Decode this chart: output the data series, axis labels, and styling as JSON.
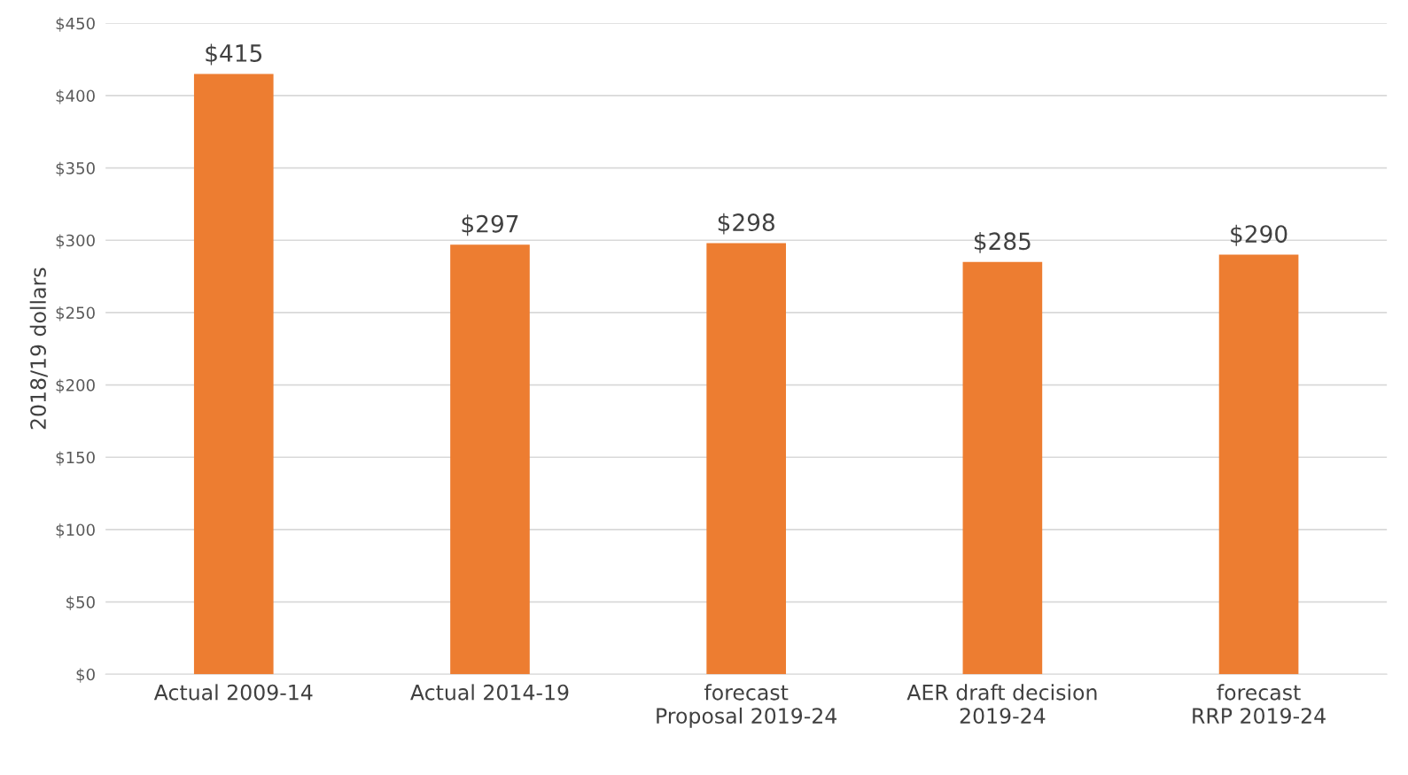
{
  "chart_data": {
    "type": "bar",
    "ylabel": "2018/19 dollars",
    "categories": [
      "Actual 2009-14",
      "Actual 2014-19",
      "forecast\nProposal 2019-24",
      "AER draft decision\n2019-24",
      "forecast\nRRP 2019-24"
    ],
    "values": [
      415,
      297,
      298,
      285,
      290
    ],
    "color": "#ed7d31",
    "value_labels": [
      "$415",
      "$297",
      "$298",
      "$285",
      "$290"
    ],
    "ylim": [
      0,
      450
    ],
    "yticks": [
      {
        "value": 0,
        "label": "$0"
      },
      {
        "value": 50,
        "label": "$50"
      },
      {
        "value": 100,
        "label": "$100"
      },
      {
        "value": 150,
        "label": "$150"
      },
      {
        "value": 200,
        "label": "$200"
      },
      {
        "value": 250,
        "label": "$250"
      },
      {
        "value": 300,
        "label": "$300"
      },
      {
        "value": 350,
        "label": "$350"
      },
      {
        "value": 400,
        "label": "$400"
      },
      {
        "value": 450,
        "label": "$450"
      }
    ],
    "grid": "y",
    "legend": false
  }
}
